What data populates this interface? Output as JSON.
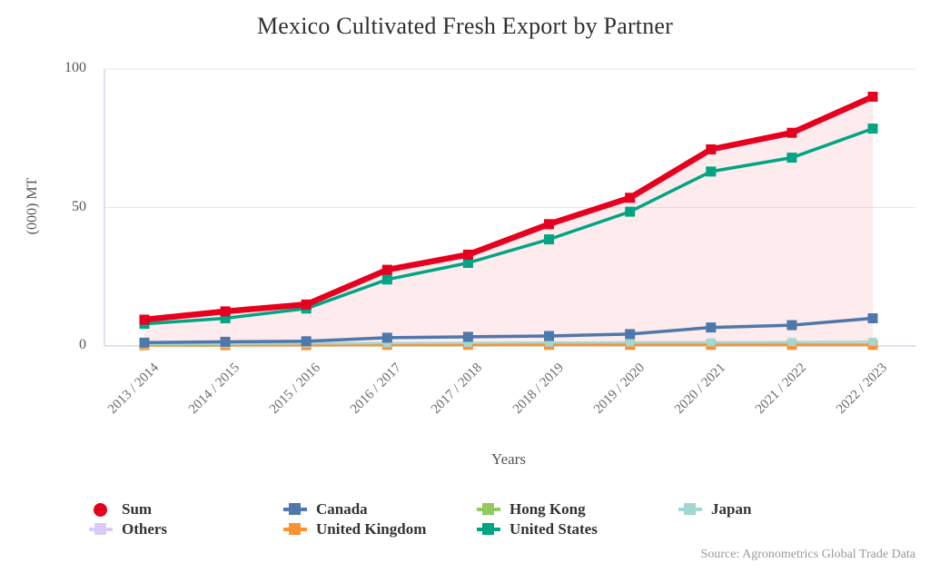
{
  "title": "Mexico Cultivated Fresh Export by Partner",
  "source": "Source: Agronometrics Global Trade Data",
  "chart_data": {
    "type": "line",
    "title": "Mexico Cultivated Fresh Export by Partner",
    "xlabel": "Years",
    "ylabel": "(000) MT",
    "ylim": [
      0,
      100
    ],
    "yticks": [
      0,
      50,
      100
    ],
    "grid": "horizontal",
    "legend_position": "bottom",
    "area_color": "rgba(230,0,31,0.08)",
    "x": [
      "2013 / 2014",
      "2014 / 2015",
      "2015 / 2016",
      "2016 / 2017",
      "2017 / 2018",
      "2018 / 2019",
      "2019 / 2020",
      "2020 / 2021",
      "2021 / 2022",
      "2022 / 2023"
    ],
    "series": [
      {
        "name": "Sum",
        "color": "#e6001f",
        "legend_marker": "circle",
        "marker": "square",
        "marker_size": 11,
        "line_width": 6.5,
        "area_fill": true,
        "z": 7,
        "values": [
          9.5,
          12.5,
          15,
          27.5,
          33,
          44,
          53.5,
          71,
          77,
          90
        ]
      },
      {
        "name": "Canada",
        "color": "#4e78ab",
        "legend_marker": "square",
        "marker": "square",
        "marker_size": 11,
        "line_width": 3.5,
        "area_fill": false,
        "z": 5,
        "values": [
          1.2,
          1.5,
          1.7,
          3,
          3.3,
          3.6,
          4.3,
          6.7,
          7.5,
          10
        ]
      },
      {
        "name": "Hong Kong",
        "color": "#93c95e",
        "legend_marker": "square",
        "marker": "square",
        "marker_size": 8,
        "line_width": 2,
        "area_fill": false,
        "z": 2,
        "values": [
          0.1,
          0.1,
          0.2,
          0.2,
          0.2,
          0.3,
          0.3,
          0.3,
          0.3,
          0.3
        ]
      },
      {
        "name": "Japan",
        "color": "#a3d7d2",
        "legend_marker": "square",
        "marker": "square",
        "marker_size": 9,
        "line_width": 2.5,
        "area_fill": false,
        "z": 4,
        "values": [
          0.7,
          0.8,
          0.9,
          1,
          1.1,
          1.2,
          1.3,
          1.3,
          1.4,
          1.5
        ]
      },
      {
        "name": "Others",
        "color": "#d9cbf8",
        "legend_marker": "square",
        "marker": "square",
        "marker_size": 9,
        "line_width": 2.5,
        "area_fill": false,
        "z": 1,
        "values": [
          1.3,
          1.2,
          1.1,
          1,
          0.9,
          0.9,
          0.8,
          0.7,
          0.6,
          0.6
        ]
      },
      {
        "name": "United Kingdom",
        "color": "#f89334",
        "legend_marker": "square",
        "marker": "square",
        "marker_size": 11,
        "line_width": 3,
        "area_fill": false,
        "z": 3,
        "values": [
          0.3,
          0.3,
          0.3,
          0.4,
          0.4,
          0.4,
          0.4,
          0.4,
          0.4,
          0.4
        ]
      },
      {
        "name": "United States",
        "color": "#00a584",
        "legend_marker": "square",
        "marker": "square",
        "marker_size": 11,
        "line_width": 3.5,
        "area_fill": false,
        "z": 6,
        "values": [
          8,
          10,
          13.5,
          24,
          30,
          38.5,
          48.5,
          63,
          68,
          78.5
        ]
      }
    ],
    "colors": {
      "gridline": "#e6e6e6",
      "axis_line": "#cfd9ec"
    }
  }
}
